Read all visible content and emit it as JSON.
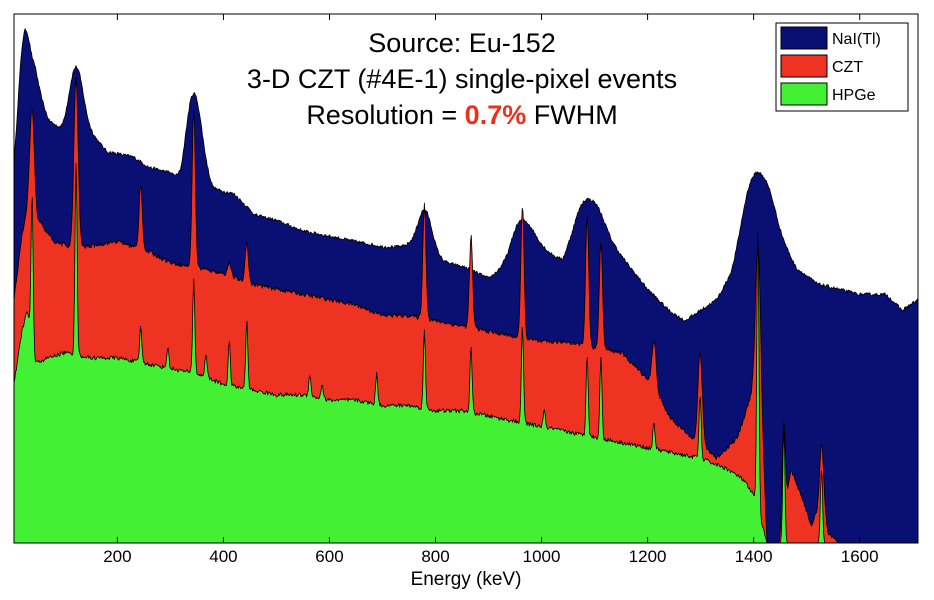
{
  "chart_data": {
    "type": "area",
    "title_lines": [
      {
        "parts": [
          {
            "text": "Source: Eu-152",
            "color": "#000000",
            "bold": false
          }
        ]
      },
      {
        "parts": [
          {
            "text": "3-D CZT (#4E-1) single-pixel events",
            "color": "#000000",
            "bold": false
          }
        ]
      },
      {
        "parts": [
          {
            "text": "Resolution = ",
            "color": "#000000",
            "bold": false
          },
          {
            "text": "0.7%",
            "color": "#e8321e",
            "bold": true
          },
          {
            "text": " FWHM",
            "color": "#000000",
            "bold": false
          }
        ]
      }
    ],
    "xlabel": "Energy (keV)",
    "ylabel": "",
    "xlim": [
      5,
      1710
    ],
    "ylim": [
      0,
      100
    ],
    "xticks": [
      200,
      400,
      600,
      800,
      1000,
      1200,
      1400,
      1600
    ],
    "grid": false,
    "legend_position": "top-right",
    "series": [
      {
        "name": "NaI(Tl)",
        "color": "#0a0f73",
        "baseline": [
          [
            5,
            66
          ],
          [
            15,
            72
          ],
          [
            30,
            80
          ],
          [
            45,
            87
          ],
          [
            70,
            80
          ],
          [
            95,
            78
          ],
          [
            130,
            80
          ],
          [
            180,
            74
          ],
          [
            230,
            73
          ],
          [
            260,
            71
          ],
          [
            300,
            70
          ],
          [
            320,
            68
          ],
          [
            350,
            73
          ],
          [
            380,
            67
          ],
          [
            420,
            66
          ],
          [
            460,
            62
          ],
          [
            500,
            61
          ],
          [
            550,
            59
          ],
          [
            600,
            58
          ],
          [
            650,
            57
          ],
          [
            700,
            56
          ],
          [
            750,
            56
          ],
          [
            780,
            54
          ],
          [
            820,
            53
          ],
          [
            860,
            52
          ],
          [
            900,
            50
          ],
          [
            940,
            53
          ],
          [
            970,
            58
          ],
          [
            1000,
            56
          ],
          [
            1040,
            53
          ],
          [
            1080,
            59
          ],
          [
            1100,
            62
          ],
          [
            1130,
            57
          ],
          [
            1160,
            53
          ],
          [
            1200,
            48
          ],
          [
            1240,
            44
          ],
          [
            1270,
            42
          ],
          [
            1300,
            44
          ],
          [
            1330,
            46
          ],
          [
            1360,
            51
          ],
          [
            1390,
            61
          ],
          [
            1410,
            65
          ],
          [
            1430,
            63
          ],
          [
            1450,
            58
          ],
          [
            1480,
            52
          ],
          [
            1520,
            49
          ],
          [
            1560,
            48
          ],
          [
            1600,
            47
          ],
          [
            1650,
            47
          ],
          [
            1680,
            44
          ],
          [
            1710,
            46
          ]
        ],
        "peaks": [
          [
            27,
            97,
            12
          ],
          [
            122,
            90,
            12
          ],
          [
            244,
            71,
            10
          ],
          [
            344,
            85,
            13
          ],
          [
            779,
            63,
            14
          ],
          [
            964,
            61,
            17
          ],
          [
            1087,
            65,
            20
          ],
          [
            1408,
            70,
            20
          ]
        ]
      },
      {
        "name": "CZT",
        "color": "#ee3322",
        "baseline": [
          [
            5,
            46
          ],
          [
            20,
            58
          ],
          [
            35,
            66
          ],
          [
            50,
            61
          ],
          [
            80,
            57
          ],
          [
            110,
            56
          ],
          [
            140,
            56
          ],
          [
            200,
            57
          ],
          [
            260,
            55
          ],
          [
            300,
            53
          ],
          [
            350,
            52
          ],
          [
            400,
            51
          ],
          [
            450,
            49
          ],
          [
            500,
            48
          ],
          [
            550,
            47
          ],
          [
            600,
            46
          ],
          [
            650,
            45
          ],
          [
            700,
            43
          ],
          [
            750,
            43
          ],
          [
            800,
            42
          ],
          [
            850,
            41
          ],
          [
            900,
            40
          ],
          [
            950,
            39
          ],
          [
            1000,
            38
          ],
          [
            1050,
            38
          ],
          [
            1100,
            37
          ],
          [
            1150,
            36
          ],
          [
            1180,
            33
          ],
          [
            1210,
            30
          ],
          [
            1240,
            24
          ],
          [
            1270,
            21
          ],
          [
            1300,
            19
          ],
          [
            1330,
            16
          ],
          [
            1370,
            20
          ],
          [
            1395,
            28
          ],
          [
            1410,
            38
          ],
          [
            1418,
            18
          ],
          [
            1425,
            0
          ],
          [
            1450,
            0
          ],
          [
            1470,
            14
          ],
          [
            1490,
            9
          ],
          [
            1510,
            3
          ],
          [
            1530,
            10
          ],
          [
            1540,
            2
          ],
          [
            1560,
            0
          ],
          [
            1710,
            0
          ]
        ],
        "peaks": [
          [
            39,
            82,
            4
          ],
          [
            122,
            88,
            4
          ],
          [
            244,
            68,
            3
          ],
          [
            344,
            82,
            3
          ],
          [
            411,
            53,
            3
          ],
          [
            444,
            57,
            3
          ],
          [
            779,
            64,
            3
          ],
          [
            867,
            58,
            3
          ],
          [
            964,
            64,
            3
          ],
          [
            1086,
            62,
            3
          ],
          [
            1112,
            57,
            3
          ],
          [
            1212,
            38,
            4
          ],
          [
            1299,
            36,
            4
          ],
          [
            1408,
            56,
            4
          ],
          [
            1457,
            23,
            3
          ],
          [
            1528,
            19,
            3
          ]
        ]
      },
      {
        "name": "HPGe",
        "color": "#44f033",
        "baseline": [
          [
            5,
            30
          ],
          [
            20,
            40
          ],
          [
            30,
            44
          ],
          [
            45,
            34
          ],
          [
            70,
            35
          ],
          [
            100,
            36
          ],
          [
            150,
            35
          ],
          [
            200,
            35
          ],
          [
            250,
            34
          ],
          [
            300,
            33
          ],
          [
            350,
            32
          ],
          [
            400,
            30
          ],
          [
            450,
            29
          ],
          [
            500,
            28
          ],
          [
            550,
            28
          ],
          [
            600,
            27
          ],
          [
            650,
            27
          ],
          [
            700,
            26
          ],
          [
            750,
            26
          ],
          [
            800,
            25
          ],
          [
            850,
            25
          ],
          [
            900,
            24
          ],
          [
            950,
            23
          ],
          [
            1000,
            22
          ],
          [
            1050,
            21
          ],
          [
            1100,
            20
          ],
          [
            1150,
            19
          ],
          [
            1200,
            18
          ],
          [
            1250,
            17
          ],
          [
            1300,
            16
          ],
          [
            1350,
            14
          ],
          [
            1380,
            12
          ],
          [
            1400,
            9
          ],
          [
            1415,
            4
          ],
          [
            1425,
            0
          ],
          [
            1710,
            0
          ]
        ],
        "peaks": [
          [
            39,
            66,
            2
          ],
          [
            122,
            72,
            2
          ],
          [
            244,
            41,
            2
          ],
          [
            295,
            37,
            2
          ],
          [
            344,
            50,
            2
          ],
          [
            367,
            36,
            2
          ],
          [
            411,
            38,
            2
          ],
          [
            444,
            42,
            2
          ],
          [
            563,
            32,
            2
          ],
          [
            586,
            30,
            2
          ],
          [
            689,
            32,
            2
          ],
          [
            779,
            40,
            2
          ],
          [
            867,
            37,
            2
          ],
          [
            964,
            41,
            2
          ],
          [
            1005,
            25,
            2
          ],
          [
            1086,
            36,
            2
          ],
          [
            1112,
            35,
            2
          ],
          [
            1212,
            23,
            2
          ],
          [
            1299,
            28,
            2
          ],
          [
            1408,
            60,
            2
          ],
          [
            1457,
            22,
            2
          ],
          [
            1528,
            14,
            2
          ]
        ]
      }
    ]
  }
}
